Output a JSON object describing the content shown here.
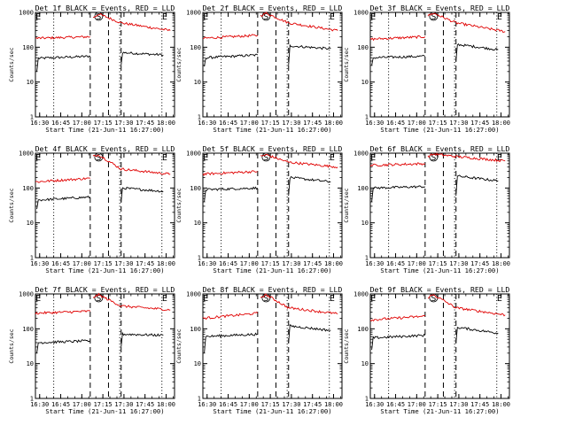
{
  "figure": {
    "xlabel": "Start Time (21-Jun-11 16:27:00)",
    "ylabel": "Counts/sec",
    "xticks": [
      "16:30",
      "16:45",
      "17:00",
      "17:15",
      "17:30",
      "17:45",
      "18:00"
    ],
    "yticks": [
      "1",
      "10",
      "100",
      "1000"
    ],
    "marker_labels": [
      "E",
      "S",
      "E"
    ]
  },
  "chart_data": [
    {
      "type": "line",
      "title": "Det 1f BLACK = Events, RED = LLD",
      "xlim": [
        "16:27",
        "18:06"
      ],
      "ylim": [
        1,
        1000
      ],
      "yscale": "log",
      "series": [
        {
          "name": "Events",
          "color": "#000000",
          "segments": [
            [
              [
                "16:28",
                20
              ],
              [
                "16:29",
                48
              ],
              [
                "17:06",
                55
              ]
            ],
            [
              [
                "17:28",
                30
              ],
              [
                "17:29",
                70
              ],
              [
                "17:58",
                60
              ]
            ]
          ]
        },
        {
          "name": "LLD",
          "color": "#e00000",
          "segments": [
            [
              [
                "16:27",
                180
              ],
              [
                "17:06",
                200
              ]
            ],
            [
              [
                "17:08",
                700
              ],
              [
                "17:12",
                900
              ],
              [
                "17:28",
                500
              ],
              [
                "18:03",
                300
              ]
            ]
          ]
        }
      ],
      "vlines_dotted": [
        "16:40",
        "17:27",
        "17:57"
      ],
      "vlines_dashed": [
        "17:06",
        "17:19",
        "17:28"
      ],
      "markers": [
        "16:29",
        "17:12",
        "17:59"
      ]
    },
    {
      "type": "line",
      "title": "Det 2f BLACK = Events, RED = LLD",
      "xlim": [
        "16:27",
        "18:06"
      ],
      "ylim": [
        1,
        1000
      ],
      "yscale": "log",
      "series": [
        {
          "name": "Events",
          "color": "#000000",
          "segments": [
            [
              [
                "16:28",
                28
              ],
              [
                "16:29",
                50
              ],
              [
                "17:06",
                60
              ]
            ],
            [
              [
                "17:28",
                30
              ],
              [
                "17:29",
                110
              ],
              [
                "17:58",
                90
              ]
            ]
          ]
        },
        {
          "name": "LLD",
          "color": "#e00000",
          "segments": [
            [
              [
                "16:27",
                180
              ],
              [
                "17:06",
                220
              ]
            ],
            [
              [
                "17:08",
                800
              ],
              [
                "17:12",
                950
              ],
              [
                "17:28",
                500
              ],
              [
                "18:03",
                300
              ]
            ]
          ]
        }
      ],
      "vlines_dotted": [
        "16:40",
        "17:27",
        "17:57"
      ],
      "vlines_dashed": [
        "17:06",
        "17:19",
        "17:28"
      ],
      "markers": [
        "16:29",
        "17:12",
        "17:59"
      ]
    },
    {
      "type": "line",
      "title": "Det 3f BLACK = Events, RED = LLD",
      "xlim": [
        "16:27",
        "18:06"
      ],
      "ylim": [
        1,
        1000
      ],
      "yscale": "log",
      "series": [
        {
          "name": "Events",
          "color": "#000000",
          "segments": [
            [
              [
                "16:28",
                30
              ],
              [
                "16:29",
                50
              ],
              [
                "17:06",
                55
              ]
            ],
            [
              [
                "17:28",
                40
              ],
              [
                "17:29",
                120
              ],
              [
                "17:58",
                85
              ]
            ]
          ]
        },
        {
          "name": "LLD",
          "color": "#e00000",
          "segments": [
            [
              [
                "16:27",
                170
              ],
              [
                "17:06",
                200
              ]
            ],
            [
              [
                "17:08",
                800
              ],
              [
                "17:12",
                950
              ],
              [
                "17:28",
                500
              ],
              [
                "18:03",
                280
              ]
            ]
          ]
        }
      ],
      "vlines_dotted": [
        "16:40",
        "17:27",
        "17:57"
      ],
      "vlines_dashed": [
        "17:06",
        "17:19",
        "17:28"
      ],
      "markers": [
        "16:29",
        "17:12",
        "17:59"
      ]
    },
    {
      "type": "line",
      "title": "Det 4f BLACK = Events, RED = LLD",
      "xlim": [
        "16:27",
        "18:06"
      ],
      "ylim": [
        1,
        1000
      ],
      "yscale": "log",
      "series": [
        {
          "name": "Events",
          "color": "#000000",
          "segments": [
            [
              [
                "16:28",
                25
              ],
              [
                "16:29",
                45
              ],
              [
                "17:06",
                55
              ]
            ],
            [
              [
                "17:28",
                40
              ],
              [
                "17:29",
                100
              ],
              [
                "17:58",
                80
              ]
            ]
          ]
        },
        {
          "name": "LLD",
          "color": "#e00000",
          "segments": [
            [
              [
                "16:27",
                150
              ],
              [
                "17:06",
                190
              ]
            ],
            [
              [
                "17:08",
                800
              ],
              [
                "17:12",
                900
              ],
              [
                "17:28",
                350
              ],
              [
                "18:03",
                250
              ]
            ]
          ]
        }
      ],
      "vlines_dotted": [
        "16:40",
        "17:27",
        "17:57"
      ],
      "vlines_dashed": [
        "17:06",
        "17:19",
        "17:28"
      ],
      "markers": [
        "16:29",
        "17:12",
        "17:59"
      ]
    },
    {
      "type": "line",
      "title": "Det 5f BLACK = Events, RED = LLD",
      "xlim": [
        "16:27",
        "18:06"
      ],
      "ylim": [
        1,
        1000
      ],
      "yscale": "log",
      "series": [
        {
          "name": "Events",
          "color": "#000000",
          "segments": [
            [
              [
                "16:28",
                40
              ],
              [
                "16:29",
                90
              ],
              [
                "17:06",
                100
              ]
            ],
            [
              [
                "17:28",
                60
              ],
              [
                "17:29",
                200
              ],
              [
                "17:58",
                150
              ]
            ]
          ]
        },
        {
          "name": "LLD",
          "color": "#e00000",
          "segments": [
            [
              [
                "16:27",
                250
              ],
              [
                "17:06",
                300
              ]
            ],
            [
              [
                "17:08",
                800
              ],
              [
                "17:12",
                900
              ],
              [
                "17:28",
                550
              ],
              [
                "18:03",
                400
              ]
            ]
          ]
        }
      ],
      "vlines_dotted": [
        "16:40",
        "17:27",
        "17:57"
      ],
      "vlines_dashed": [
        "17:06",
        "17:19",
        "17:28"
      ],
      "markers": [
        "16:29",
        "17:12",
        "17:59"
      ]
    },
    {
      "type": "line",
      "title": "Det 6f BLACK = Events, RED = LLD",
      "xlim": [
        "16:27",
        "18:06"
      ],
      "ylim": [
        1,
        1000
      ],
      "yscale": "log",
      "series": [
        {
          "name": "Events",
          "color": "#000000",
          "segments": [
            [
              [
                "16:28",
                40
              ],
              [
                "16:29",
                100
              ],
              [
                "17:06",
                110
              ]
            ],
            [
              [
                "17:28",
                60
              ],
              [
                "17:29",
                220
              ],
              [
                "17:58",
                160
              ]
            ]
          ]
        },
        {
          "name": "LLD",
          "color": "#e00000",
          "segments": [
            [
              [
                "16:27",
                450
              ],
              [
                "17:06",
                500
              ]
            ],
            [
              [
                "17:08",
                800
              ],
              [
                "17:12",
                950
              ],
              [
                "17:28",
                800
              ],
              [
                "18:03",
                600
              ]
            ]
          ]
        }
      ],
      "vlines_dotted": [
        "16:40",
        "17:27",
        "17:57"
      ],
      "vlines_dashed": [
        "17:06",
        "17:19",
        "17:28"
      ],
      "markers": [
        "16:29",
        "17:12",
        "17:59"
      ]
    },
    {
      "type": "line",
      "title": "Det 7f BLACK = Events, RED = LLD",
      "xlim": [
        "16:27",
        "18:06"
      ],
      "ylim": [
        1,
        1000
      ],
      "yscale": "log",
      "series": [
        {
          "name": "Events",
          "color": "#000000",
          "segments": [
            [
              [
                "16:28",
                20
              ],
              [
                "16:29",
                40
              ],
              [
                "17:06",
                45
              ]
            ],
            [
              [
                "17:28",
                30
              ],
              [
                "17:29",
                70
              ],
              [
                "17:58",
                65
              ]
            ]
          ]
        },
        {
          "name": "LLD",
          "color": "#e00000",
          "segments": [
            [
              [
                "16:27",
                280
              ],
              [
                "17:06",
                320
              ]
            ],
            [
              [
                "17:08",
                800
              ],
              [
                "17:12",
                950
              ],
              [
                "17:28",
                450
              ],
              [
                "18:03",
                350
              ]
            ]
          ]
        }
      ],
      "vlines_dotted": [
        "16:40",
        "17:27",
        "17:57"
      ],
      "vlines_dashed": [
        "17:06",
        "17:19",
        "17:28"
      ],
      "markers": [
        "16:29",
        "17:12",
        "17:59"
      ]
    },
    {
      "type": "line",
      "title": "Det 8f BLACK = Events, RED = LLD",
      "xlim": [
        "16:27",
        "18:06"
      ],
      "ylim": [
        1,
        1000
      ],
      "yscale": "log",
      "series": [
        {
          "name": "Events",
          "color": "#000000",
          "segments": [
            [
              [
                "16:28",
                20
              ],
              [
                "16:29",
                60
              ],
              [
                "17:06",
                70
              ]
            ],
            [
              [
                "17:28",
                40
              ],
              [
                "17:29",
                120
              ],
              [
                "17:58",
                90
              ]
            ]
          ]
        },
        {
          "name": "LLD",
          "color": "#e00000",
          "segments": [
            [
              [
                "16:27",
                200
              ],
              [
                "17:06",
                280
              ]
            ],
            [
              [
                "17:08",
                800
              ],
              [
                "17:12",
                950
              ],
              [
                "17:28",
                400
              ],
              [
                "18:03",
                270
              ]
            ]
          ]
        }
      ],
      "vlines_dotted": [
        "16:40",
        "17:27",
        "17:57"
      ],
      "vlines_dashed": [
        "17:06",
        "17:19",
        "17:28"
      ],
      "markers": [
        "16:29",
        "17:12",
        "17:59"
      ]
    },
    {
      "type": "line",
      "title": "Det 9f BLACK = Events, RED = LLD",
      "xlim": [
        "16:27",
        "18:06"
      ],
      "ylim": [
        1,
        1000
      ],
      "yscale": "log",
      "series": [
        {
          "name": "Events",
          "color": "#000000",
          "segments": [
            [
              [
                "16:28",
                25
              ],
              [
                "16:29",
                55
              ],
              [
                "17:06",
                65
              ]
            ],
            [
              [
                "17:28",
                40
              ],
              [
                "17:29",
                110
              ],
              [
                "17:58",
                75
              ]
            ]
          ]
        },
        {
          "name": "LLD",
          "color": "#e00000",
          "segments": [
            [
              [
                "16:27",
                180
              ],
              [
                "17:06",
                230
              ]
            ],
            [
              [
                "17:08",
                800
              ],
              [
                "17:12",
                950
              ],
              [
                "17:28",
                400
              ],
              [
                "18:03",
                250
              ]
            ]
          ]
        }
      ],
      "vlines_dotted": [
        "16:40",
        "17:27",
        "17:57"
      ],
      "vlines_dashed": [
        "17:06",
        "17:19",
        "17:28"
      ],
      "markers": [
        "16:29",
        "17:12",
        "17:59"
      ]
    }
  ]
}
